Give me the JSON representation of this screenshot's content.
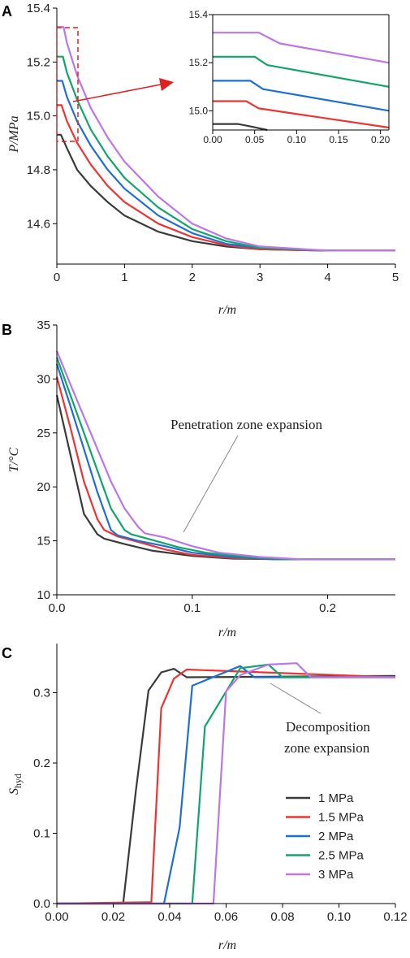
{
  "colors": [
    "#3a3a3a",
    "#ee3333",
    "#1f6fd1",
    "#11a56a",
    "#bb77e6"
  ],
  "legend": [
    "1 MPa",
    "1.5 MPa",
    "2 MPa",
    "2.5 MPa",
    "3 MPa"
  ],
  "chart_data": [
    {
      "panel": "A",
      "type": "line",
      "xlabel": "r/m",
      "ylabel": "P/MPa",
      "xlim": [
        0,
        5
      ],
      "ylim": [
        14.45,
        15.4
      ],
      "xticks": [
        0,
        1,
        2,
        3,
        4,
        5
      ],
      "yticks": [
        14.6,
        14.8,
        15.0,
        15.2,
        15.4
      ],
      "series": [
        {
          "name": "1 MPa",
          "x": [
            0,
            0.06,
            0.15,
            0.3,
            0.5,
            0.75,
            1.0,
            1.5,
            2.0,
            2.5,
            3.0,
            4.0,
            5.0
          ],
          "y": [
            14.93,
            14.93,
            14.88,
            14.8,
            14.74,
            14.68,
            14.63,
            14.57,
            14.535,
            14.515,
            14.505,
            14.5,
            14.5
          ]
        },
        {
          "name": "1.5 MPa",
          "x": [
            0,
            0.07,
            0.15,
            0.3,
            0.5,
            0.75,
            1.0,
            1.5,
            2.0,
            2.5,
            3.0,
            4.0,
            5.0
          ],
          "y": [
            15.04,
            15.04,
            14.98,
            14.9,
            14.82,
            14.74,
            14.68,
            14.6,
            14.55,
            14.52,
            14.505,
            14.5,
            14.5
          ]
        },
        {
          "name": "2 MPa",
          "x": [
            0,
            0.08,
            0.15,
            0.3,
            0.5,
            0.75,
            1.0,
            1.5,
            2.0,
            2.5,
            3.0,
            4.0,
            5.0
          ],
          "y": [
            15.13,
            15.13,
            15.07,
            14.98,
            14.89,
            14.8,
            14.73,
            14.63,
            14.565,
            14.525,
            14.51,
            14.5,
            14.5
          ]
        },
        {
          "name": "2.5 MPa",
          "x": [
            0,
            0.09,
            0.15,
            0.3,
            0.5,
            0.75,
            1.0,
            1.5,
            2.0,
            2.5,
            3.0,
            4.0,
            5.0
          ],
          "y": [
            15.22,
            15.22,
            15.16,
            15.06,
            14.95,
            14.85,
            14.77,
            14.66,
            14.58,
            14.535,
            14.51,
            14.5,
            14.5
          ]
        },
        {
          "name": "3 MPa",
          "x": [
            0,
            0.1,
            0.15,
            0.3,
            0.5,
            0.75,
            1.0,
            1.5,
            2.0,
            2.5,
            3.0,
            4.0,
            5.0
          ],
          "y": [
            15.33,
            15.33,
            15.27,
            15.15,
            15.03,
            14.92,
            14.83,
            14.7,
            14.6,
            14.545,
            14.515,
            14.5,
            14.5
          ]
        }
      ]
    },
    {
      "panel": "A-inset",
      "type": "line",
      "xlim": [
        0,
        0.21
      ],
      "ylim": [
        14.92,
        15.4
      ],
      "xticks": [
        0.0,
        0.05,
        0.1,
        0.15,
        0.2
      ],
      "yticks": [
        15.0,
        15.2,
        15.4
      ],
      "series": [
        {
          "name": "1 MPa",
          "x": [
            0,
            0.03,
            0.045,
            0.065
          ],
          "y": [
            14.945,
            14.945,
            14.935,
            14.92
          ]
        },
        {
          "name": "1.5 MPa",
          "x": [
            0,
            0.04,
            0.055,
            0.21
          ],
          "y": [
            15.04,
            15.04,
            15.01,
            14.93
          ]
        },
        {
          "name": "2 MPa",
          "x": [
            0,
            0.045,
            0.06,
            0.21
          ],
          "y": [
            15.125,
            15.125,
            15.09,
            15.0
          ]
        },
        {
          "name": "2.5 MPa",
          "x": [
            0,
            0.05,
            0.065,
            0.21
          ],
          "y": [
            15.225,
            15.225,
            15.19,
            15.1
          ]
        },
        {
          "name": "3 MPa",
          "x": [
            0,
            0.055,
            0.08,
            0.21
          ],
          "y": [
            15.325,
            15.325,
            15.28,
            15.2
          ]
        }
      ]
    },
    {
      "panel": "B",
      "type": "line",
      "xlabel": "r/m",
      "ylabel": "T/°C",
      "xlim": [
        0,
        0.25
      ],
      "ylim": [
        10,
        35
      ],
      "xticks": [
        0.0,
        0.1,
        0.2
      ],
      "yticks": [
        10,
        15,
        20,
        25,
        30,
        35
      ],
      "annotation": "Penetration zone expansion",
      "series": [
        {
          "name": "1 MPa",
          "x": [
            0,
            0.01,
            0.02,
            0.03,
            0.035,
            0.05,
            0.07,
            0.1,
            0.13,
            0.16,
            0.25
          ],
          "y": [
            28.5,
            23.0,
            17.5,
            15.6,
            15.2,
            14.7,
            14.1,
            13.6,
            13.35,
            13.3,
            13.3
          ]
        },
        {
          "name": "1.5 MPa",
          "x": [
            0,
            0.01,
            0.02,
            0.03,
            0.035,
            0.045,
            0.06,
            0.08,
            0.1,
            0.13,
            0.16,
            0.25
          ],
          "y": [
            30.2,
            25.5,
            20.5,
            17.0,
            16.0,
            15.4,
            14.9,
            14.2,
            13.7,
            13.4,
            13.3,
            13.3
          ]
        },
        {
          "name": "2 MPa",
          "x": [
            0,
            0.01,
            0.02,
            0.03,
            0.04,
            0.045,
            0.06,
            0.08,
            0.1,
            0.13,
            0.16,
            0.25
          ],
          "y": [
            31.4,
            27.5,
            23.5,
            19.5,
            16.0,
            15.5,
            15.0,
            14.5,
            13.9,
            13.5,
            13.3,
            13.3
          ]
        },
        {
          "name": "2.5 MPa",
          "x": [
            0,
            0.01,
            0.02,
            0.03,
            0.04,
            0.05,
            0.055,
            0.07,
            0.09,
            0.11,
            0.14,
            0.17,
            0.25
          ],
          "y": [
            32.0,
            28.5,
            25.0,
            21.5,
            18.0,
            16.0,
            15.6,
            15.1,
            14.4,
            13.9,
            13.5,
            13.3,
            13.3
          ]
        },
        {
          "name": "3 MPa",
          "x": [
            0,
            0.01,
            0.02,
            0.03,
            0.04,
            0.05,
            0.06,
            0.065,
            0.08,
            0.1,
            0.12,
            0.15,
            0.18,
            0.25
          ],
          "y": [
            32.6,
            29.5,
            26.5,
            23.5,
            20.5,
            18.0,
            16.3,
            15.7,
            15.3,
            14.5,
            13.9,
            13.5,
            13.3,
            13.3
          ]
        }
      ]
    },
    {
      "panel": "C",
      "type": "line",
      "xlabel": "r/m",
      "ylabel": "S_hyd",
      "xlim": [
        0,
        0.12
      ],
      "ylim": [
        0,
        0.37
      ],
      "xticks": [
        0.0,
        0.02,
        0.04,
        0.06,
        0.08,
        0.1,
        0.12
      ],
      "yticks": [
        0.0,
        0.1,
        0.2,
        0.3
      ],
      "annotation": "Decomposition zone expansion",
      "series": [
        {
          "name": "1 MPa",
          "x": [
            0,
            0.0235,
            0.028,
            0.0325,
            0.037,
            0.0415,
            0.046,
            0.12
          ],
          "y": [
            0,
            0,
            0.16,
            0.303,
            0.329,
            0.334,
            0.322,
            0.324
          ]
        },
        {
          "name": "1.5 MPa",
          "x": [
            0,
            0.0325,
            0.0335,
            0.037,
            0.0415,
            0.046,
            0.12
          ],
          "y": [
            0,
            0.002,
            0.002,
            0.278,
            0.32,
            0.333,
            0.322
          ]
        },
        {
          "name": "2 MPa",
          "x": [
            0,
            0.038,
            0.0435,
            0.048,
            0.065,
            0.07,
            0.12
          ],
          "y": [
            0,
            0,
            0.108,
            0.31,
            0.338,
            0.322,
            0.322
          ]
        },
        {
          "name": "2.5 MPa",
          "x": [
            0,
            0.048,
            0.0525,
            0.065,
            0.075,
            0.08,
            0.12
          ],
          "y": [
            0,
            0,
            0.252,
            0.335,
            0.34,
            0.322,
            0.322
          ]
        },
        {
          "name": "3 MPa",
          "x": [
            0,
            0.0555,
            0.06,
            0.065,
            0.075,
            0.085,
            0.09,
            0.12
          ],
          "y": [
            0,
            0,
            0.302,
            0.325,
            0.34,
            0.342,
            0.322,
            0.322
          ]
        }
      ]
    }
  ],
  "labels": {
    "panel_a": "A",
    "panel_b": "B",
    "panel_c": "C",
    "xlabel_a": "r/m",
    "xlabel_b": "r/m",
    "xlabel_c": "r/m",
    "ylabel_a": "P/MPa",
    "ylabel_b": "T/°C",
    "ylabel_c_main": "S",
    "ylabel_c_sub": "hyd",
    "annot_b": "Penetration zone expansion",
    "annot_c_line1": "Decomposition",
    "annot_c_line2": "zone expansion"
  }
}
